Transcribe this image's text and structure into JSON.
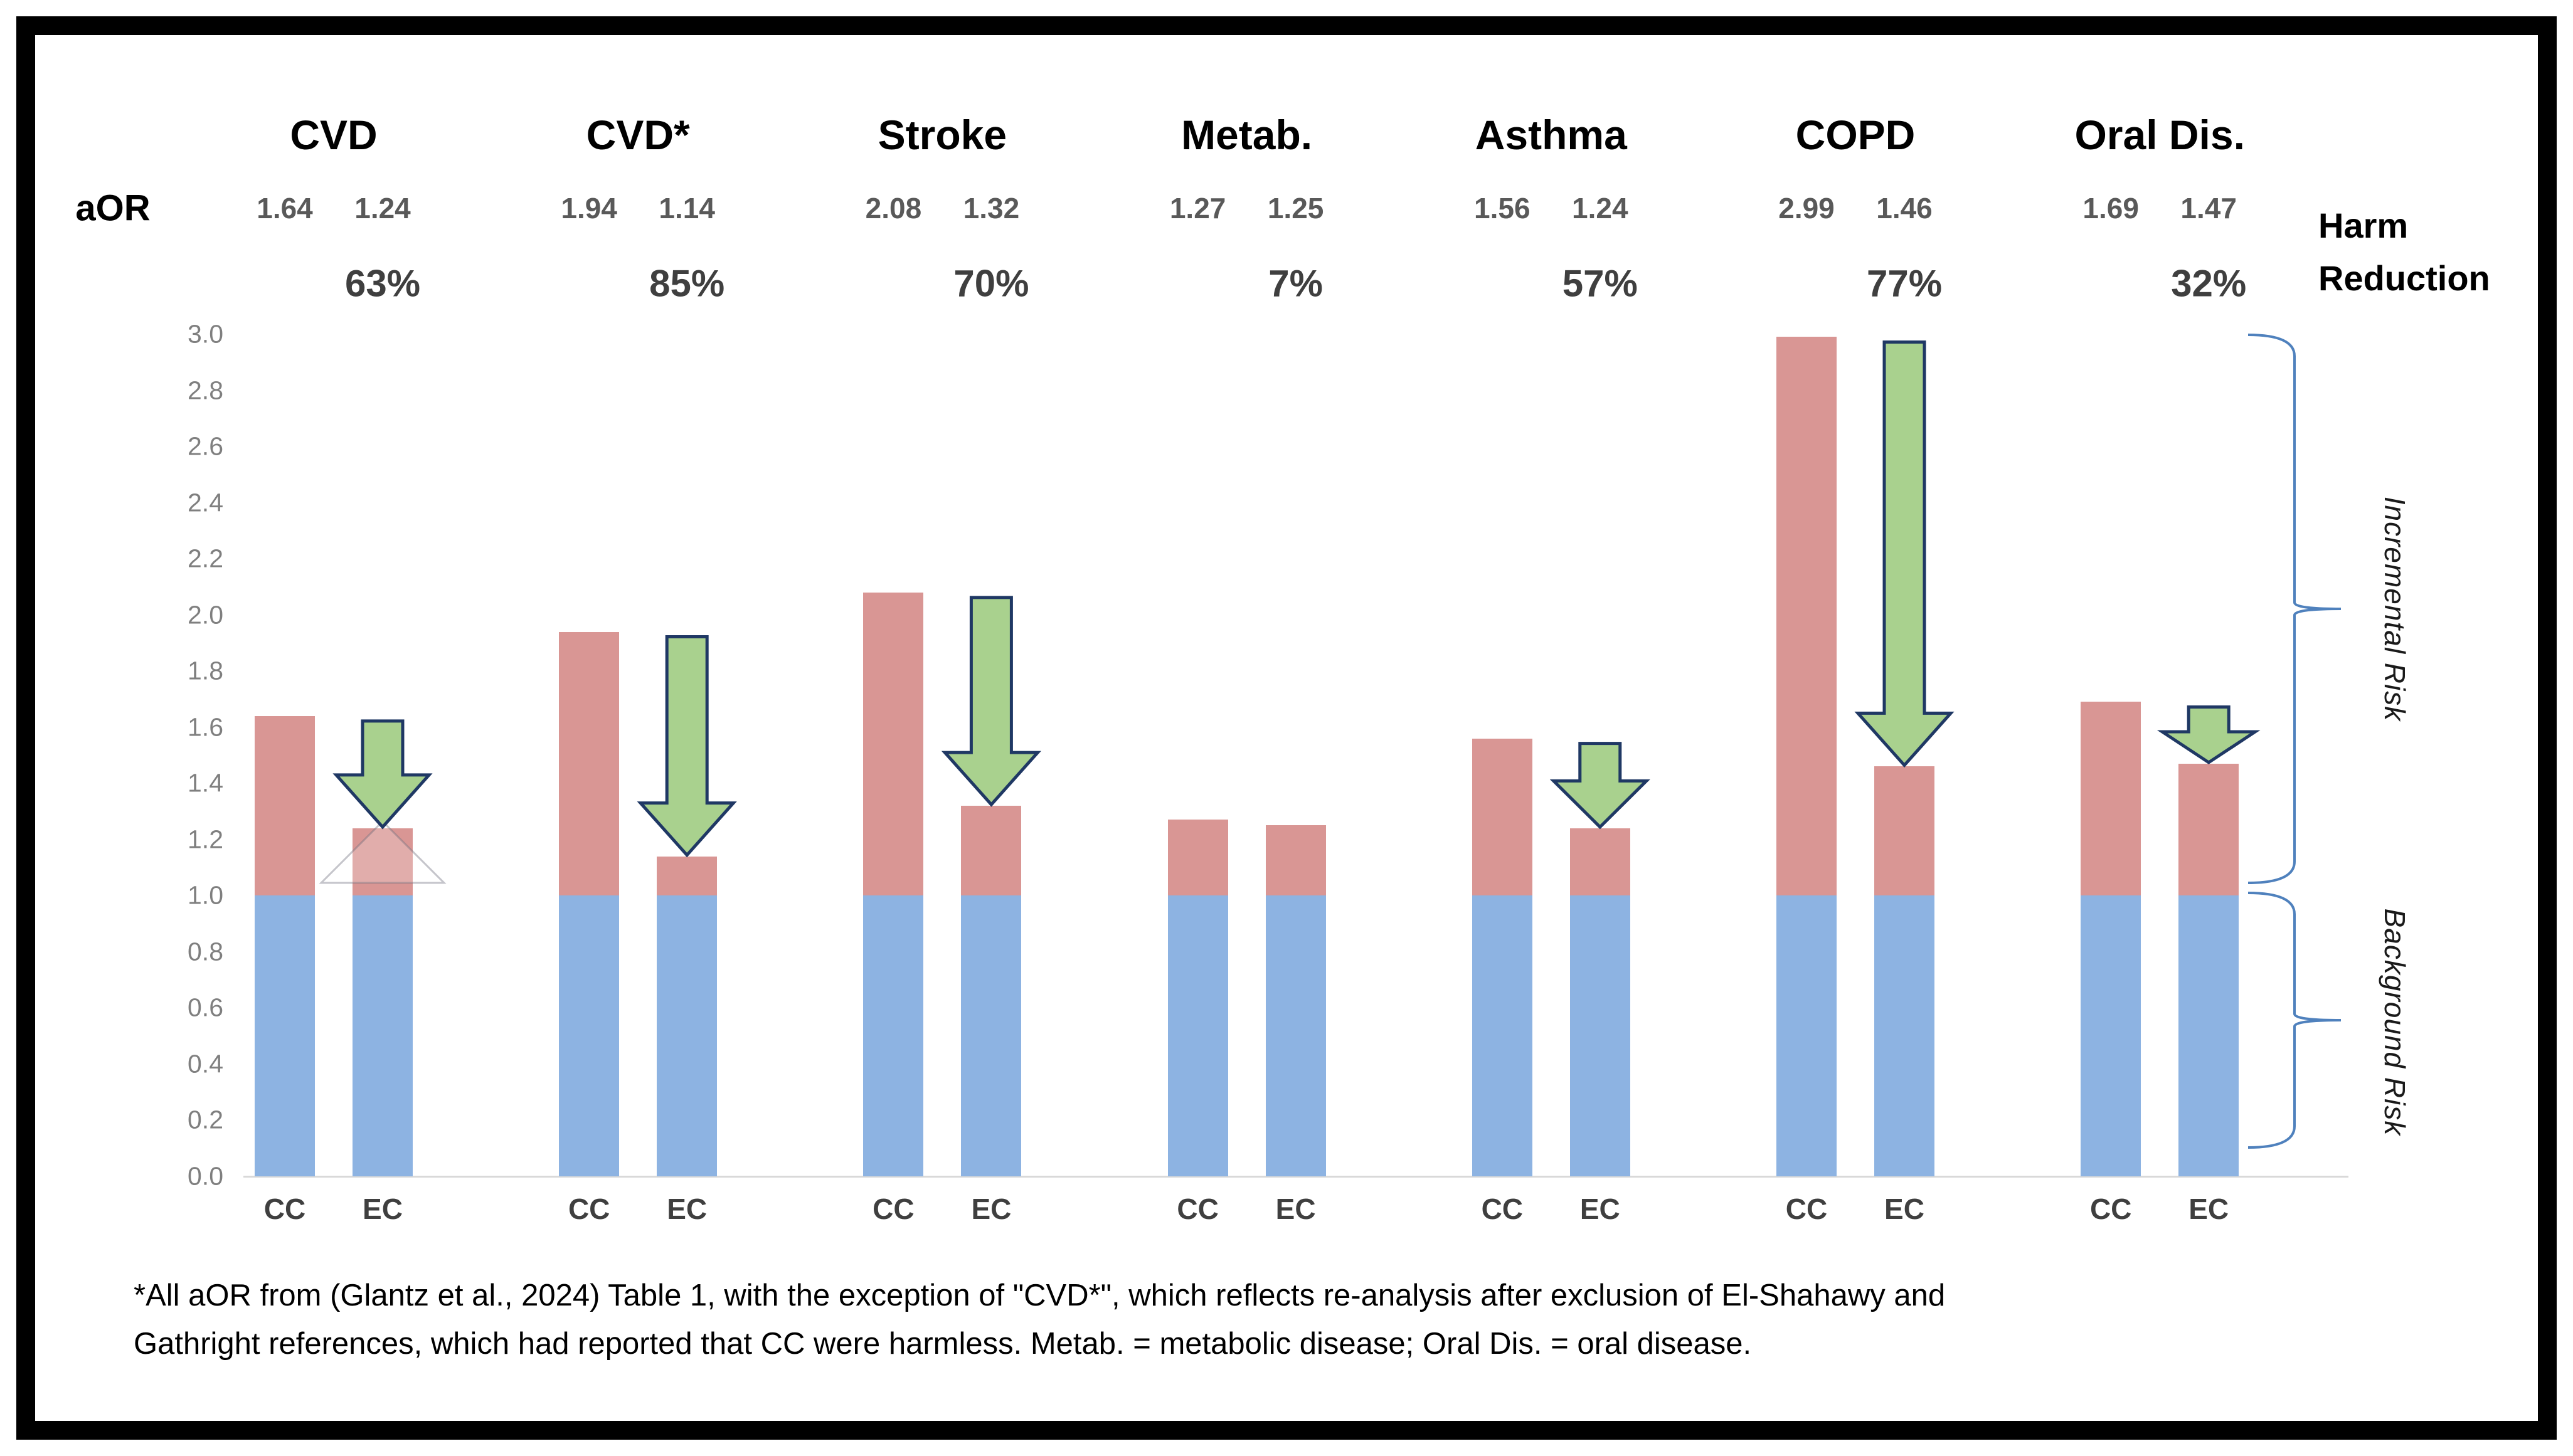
{
  "header": {
    "aor_label": "aOR",
    "harm_reduction_lines": [
      "Harm",
      "Reduction"
    ]
  },
  "chart_data": {
    "type": "bar",
    "stacked": true,
    "title": "",
    "categories": [
      "CVD",
      "CVD*",
      "Stroke",
      "Metab.",
      "Asthma",
      "COPD",
      "Oral Dis."
    ],
    "bar_series_labels": [
      "CC",
      "EC"
    ],
    "series": [
      {
        "name": "CC aOR",
        "values": [
          1.64,
          1.94,
          2.08,
          1.27,
          1.56,
          2.99,
          1.69
        ]
      },
      {
        "name": "EC aOR",
        "values": [
          1.24,
          1.14,
          1.32,
          1.25,
          1.24,
          1.46,
          1.47
        ]
      }
    ],
    "harm_reduction": [
      "63%",
      "85%",
      "70%",
      "7%",
      "57%",
      "77%",
      "32%"
    ],
    "arrows": [
      true,
      true,
      true,
      false,
      true,
      true,
      true
    ],
    "background_risk_value": 1.0,
    "ylim": [
      0,
      3.0
    ],
    "yticks": [
      "0.0",
      "0.2",
      "0.4",
      "0.6",
      "0.8",
      "1.0",
      "1.2",
      "1.4",
      "1.6",
      "1.8",
      "2.0",
      "2.2",
      "2.4",
      "2.6",
      "2.8",
      "3.0"
    ],
    "grid": false,
    "legend_position": "none",
    "annotations": {
      "incremental_risk": "Incremental Risk",
      "background_risk": "Background Risk"
    },
    "colors": {
      "background_bar": "#8db3e2",
      "incremental_bar": "#d99694",
      "arrow_fill": "#a9d18e",
      "arrow_stroke": "#1f3864",
      "brace": "#4f81bd",
      "axis_line": "#d9d9d9",
      "tick_text": "#7f7f7f",
      "aor_text": "#595959",
      "pct_text": "#3f3f3f",
      "xlabel_text": "#3f3f3f",
      "header_text": "#000000",
      "risk_text": "#1a1a1a"
    }
  },
  "footnote": {
    "lines": [
      "*All aOR from (Glantz et al., 2024) Table 1, with the exception of \"CVD*\", which reflects re-analysis after exclusion of El-Shahawy and",
      "Gathright references, which had reported that CC were harmless. Metab. = metabolic disease; Oral Dis. = oral disease."
    ]
  }
}
